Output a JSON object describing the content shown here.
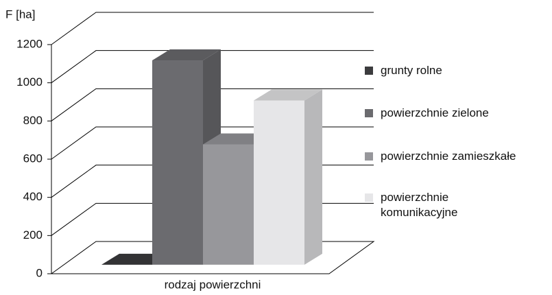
{
  "chart_data": {
    "type": "bar3d",
    "y_label": "F [ha]",
    "x_label": "rodzaj powierzchni",
    "series": [
      {
        "name": "grunty rolne",
        "color": "#3c3c3e",
        "values": [
          0
        ]
      },
      {
        "name": "powierzchnie zielone",
        "color": "#6b6b6f",
        "values": [
          1070
        ]
      },
      {
        "name": "powierzchnie zamieszkałe",
        "color": "#97979b",
        "values": [
          630
        ]
      },
      {
        "name": "powierzchnie\nkomunikacyjne",
        "color": "#e6e6e8",
        "values": [
          860
        ]
      }
    ],
    "ylim": [
      0,
      1200
    ],
    "yticks": [
      0,
      200,
      400,
      600,
      800,
      1000,
      1200
    ],
    "grid": true,
    "legend": "right"
  }
}
